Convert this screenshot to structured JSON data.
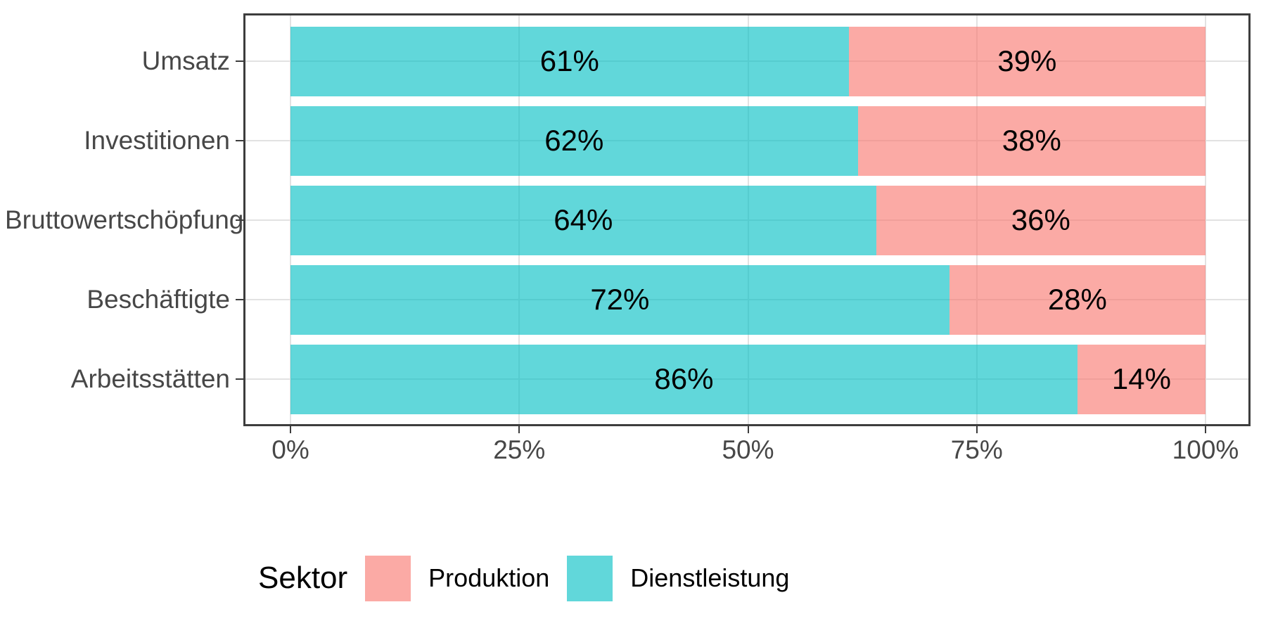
{
  "chart_data": {
    "type": "bar",
    "orientation": "horizontal",
    "stacked": true,
    "unit": "%",
    "categories": [
      "Umsatz",
      "Investitionen",
      "Bruttowertschöpfung",
      "Beschäftigte",
      "Arbeitsstätten"
    ],
    "series": [
      {
        "name": "Dienstleistung",
        "base_color": "#00BFC4",
        "fill_rgba": "rgba(0,191,196,0.62)",
        "values": [
          61,
          62,
          64,
          72,
          86
        ]
      },
      {
        "name": "Produktion",
        "base_color": "#F8766D",
        "fill_rgba": "rgba(248,118,109,0.62)",
        "values": [
          39,
          38,
          36,
          28,
          14
        ]
      }
    ],
    "x_axis": {
      "ticks": [
        "0%",
        "25%",
        "50%",
        "75%",
        "100%"
      ],
      "range": [
        0,
        100
      ],
      "grid": true
    },
    "y_axis": {
      "grid": true
    },
    "legend": {
      "title": "Sektor",
      "position": "bottom",
      "items": [
        {
          "label": "Produktion",
          "fill_rgba": "rgba(248,118,109,0.62)"
        },
        {
          "label": "Dienstleistung",
          "fill_rgba": "rgba(0,191,196,0.62)"
        }
      ]
    },
    "colors": {
      "gridline": "#E2E2E2",
      "panel_border": "#3D3D3D",
      "axis_text": "#474747",
      "value_text": "#000000"
    }
  }
}
